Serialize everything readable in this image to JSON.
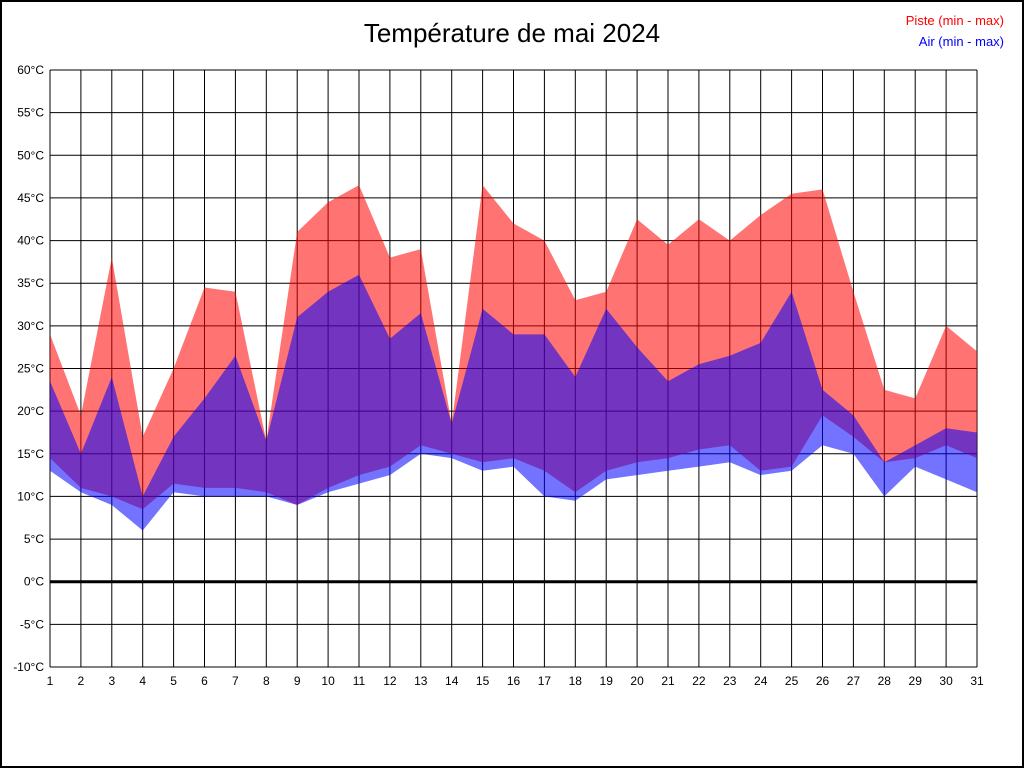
{
  "title": "Température de mai 2024",
  "legend": {
    "piste": "Piste (min - max)",
    "air": "Air (min - max)",
    "piste_color": "#ff0000",
    "air_color": "#0000ff"
  },
  "chart_data": {
    "type": "area",
    "title": "Température de mai 2024",
    "unit": "°C",
    "xlabel": "",
    "ylabel": "",
    "ylim": [
      -10,
      60
    ],
    "ytick_step": 5,
    "grid": true,
    "legend_position": "top-right",
    "fill_opacity": 0.55,
    "zero_line_color": "#000000",
    "grid_color": "#000000",
    "x": [
      1,
      2,
      3,
      4,
      5,
      6,
      7,
      8,
      9,
      10,
      11,
      12,
      13,
      14,
      15,
      16,
      17,
      18,
      19,
      20,
      21,
      22,
      23,
      24,
      25,
      26,
      27,
      28,
      29,
      30,
      31
    ],
    "bands": [
      {
        "name": "piste",
        "label": "Piste (min - max)",
        "color": "#ff0000",
        "max": [
          29,
          19.5,
          38,
          17,
          25,
          34.5,
          34,
          16.5,
          41,
          44.5,
          46.5,
          38,
          39,
          18.5,
          46.5,
          42,
          40,
          33,
          34,
          42.5,
          39.5,
          42.5,
          40,
          43,
          45.5,
          46,
          34,
          22.5,
          21.5,
          30,
          27
        ],
        "min": [
          14.5,
          11,
          10,
          8.5,
          11.5,
          11,
          11,
          10.5,
          9,
          11,
          12.5,
          13.5,
          16,
          15,
          14,
          14.5,
          13,
          10.5,
          13,
          14,
          14.5,
          15.5,
          16,
          13,
          13.5,
          19.5,
          17,
          14,
          14.5,
          16,
          14.5
        ]
      },
      {
        "name": "air",
        "label": "Air (min - max)",
        "color": "#0000ff",
        "max": [
          23.5,
          15,
          24,
          10,
          17,
          21.5,
          26.5,
          16.5,
          31,
          34,
          36,
          28.5,
          31.5,
          18.5,
          32,
          29,
          29,
          24,
          32,
          27.5,
          23.5,
          25.5,
          26.5,
          28,
          34,
          22.5,
          19.5,
          14,
          16,
          18,
          17.5
        ],
        "min": [
          13,
          10.5,
          9,
          6,
          10.5,
          10,
          10,
          10,
          9,
          10.5,
          11.5,
          12.5,
          15,
          14.5,
          13,
          13.5,
          10,
          9.5,
          12,
          12.5,
          13,
          13.5,
          14,
          12.5,
          13,
          16,
          15,
          10,
          13.5,
          12,
          10.5
        ]
      }
    ]
  }
}
